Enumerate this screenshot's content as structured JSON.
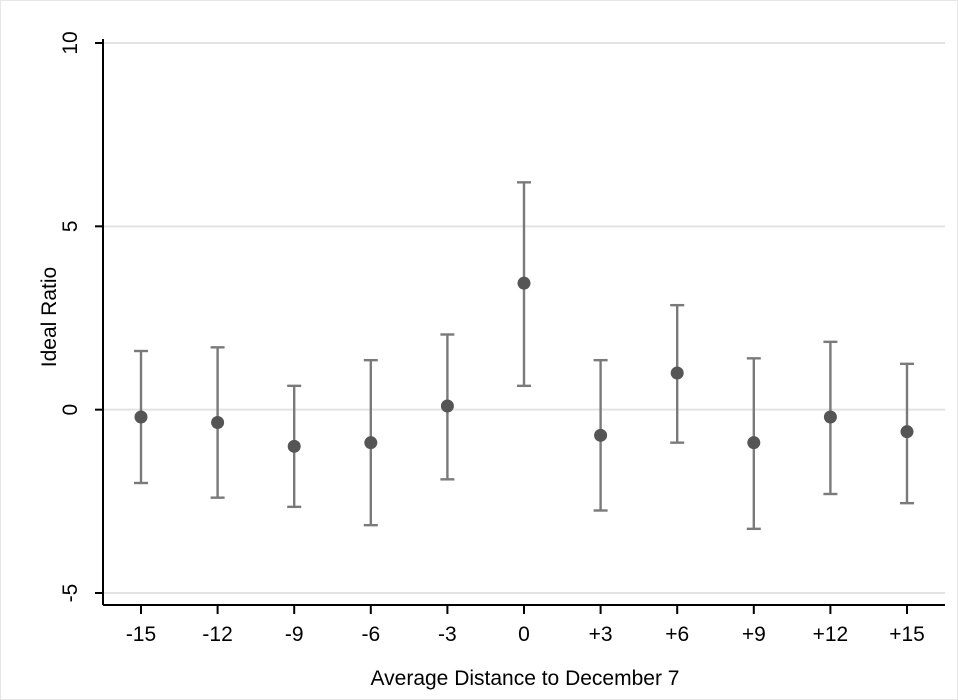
{
  "chart_data": {
    "type": "scatter",
    "title": "",
    "xlabel": "Average Distance to December 7",
    "ylabel": "Ideal Ratio",
    "categories": [
      "-15",
      "-12",
      "-9",
      "-6",
      "-3",
      "0",
      "+3",
      "+6",
      "+9",
      "+12",
      "+15"
    ],
    "yticks": [
      "-5",
      "0",
      "5",
      "10"
    ],
    "ylim": [
      -5,
      10
    ],
    "grid": true,
    "legend": "none",
    "series": [
      {
        "point_estimates": [
          -0.2,
          -0.35,
          -1.0,
          -0.9,
          0.1,
          3.45,
          -0.7,
          1.0,
          -0.9,
          -0.2,
          -0.6
        ],
        "ci_lower": [
          -2.0,
          -2.4,
          -2.65,
          -3.15,
          -1.9,
          0.65,
          -2.75,
          -0.9,
          -3.25,
          -2.3,
          -2.55
        ],
        "ci_upper": [
          1.6,
          1.7,
          0.65,
          1.35,
          2.05,
          6.2,
          1.35,
          2.85,
          1.4,
          1.85,
          1.25
        ]
      }
    ],
    "colors": {
      "point": "#555555",
      "errorbar": "#7a7a7a",
      "grid": "#e3e3e3"
    }
  }
}
